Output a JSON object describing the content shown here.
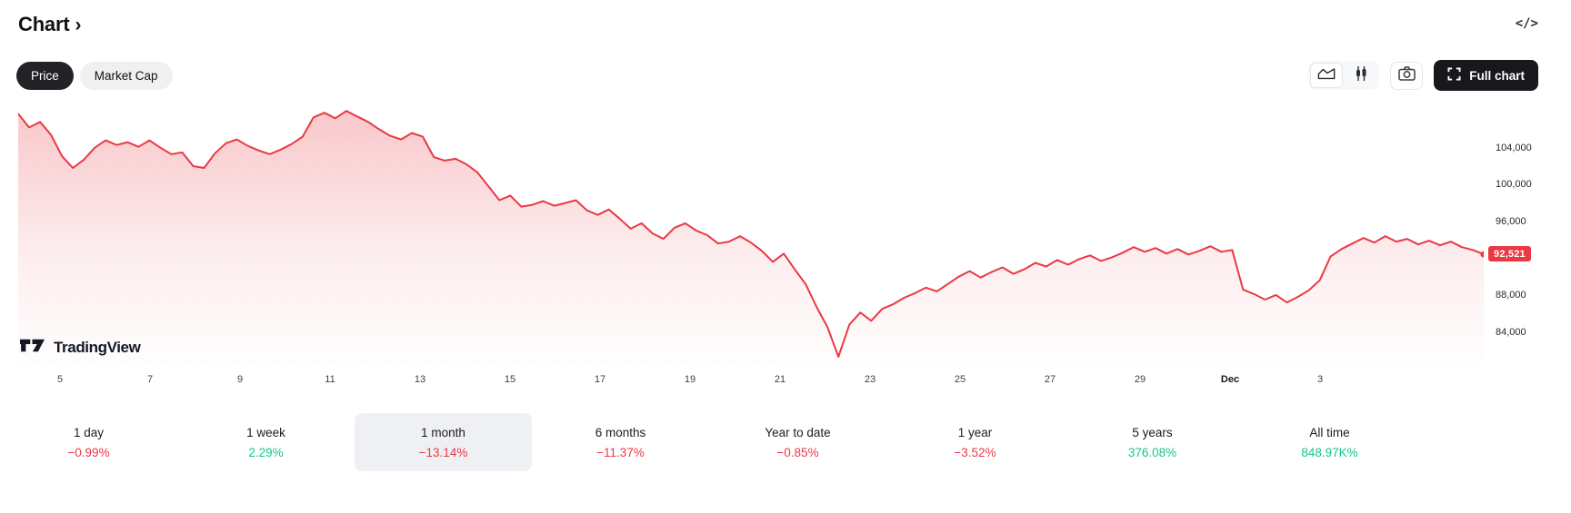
{
  "header": {
    "title": "Chart",
    "chevron": "›",
    "code_icon": "</>"
  },
  "toolbar": {
    "tabs": [
      {
        "label": "Price",
        "active": true
      },
      {
        "label": "Market Cap",
        "active": false
      }
    ],
    "chart_type_selected": "area",
    "full_chart_label": "Full chart"
  },
  "chart_data": {
    "type": "area",
    "title": "Price chart, 1 month",
    "x_labels": [
      "5",
      "7",
      "9",
      "11",
      "13",
      "15",
      "17",
      "19",
      "21",
      "23",
      "25",
      "27",
      "29",
      "Dec",
      "3"
    ],
    "y_ticks": [
      104000,
      100000,
      96000,
      88000,
      84000
    ],
    "y_tick_labels": [
      "104,000",
      "100,000",
      "96,000",
      "88,000",
      "84,000"
    ],
    "current_price": 92521,
    "current_price_label": "92,521",
    "y_range": [
      80500,
      109300
    ],
    "prices": [
      107800,
      106300,
      106900,
      105500,
      103200,
      101900,
      102800,
      104100,
      104900,
      104400,
      104700,
      104200,
      104900,
      104100,
      103400,
      103600,
      102100,
      101900,
      103500,
      104600,
      105000,
      104300,
      103800,
      103400,
      103900,
      104500,
      105300,
      107400,
      107900,
      107300,
      108100,
      107500,
      106900,
      106100,
      105400,
      105000,
      105700,
      105300,
      103100,
      102700,
      102900,
      102300,
      101400,
      99900,
      98400,
      98900,
      97700,
      97900,
      98300,
      97800,
      98100,
      98400,
      97300,
      96800,
      97400,
      96400,
      95300,
      95900,
      94800,
      94200,
      95400,
      95900,
      95100,
      94600,
      93700,
      93900,
      94500,
      93800,
      92900,
      91700,
      92600,
      90900,
      89300,
      86800,
      84600,
      81400,
      84900,
      86200,
      85300,
      86600,
      87100,
      87800,
      88300,
      88900,
      88500,
      89300,
      90100,
      90700,
      90000,
      90600,
      91100,
      90400,
      90900,
      91600,
      91200,
      91900,
      91400,
      92000,
      92400,
      91800,
      92200,
      92700,
      93300,
      92800,
      93200,
      92600,
      93100,
      92500,
      92900,
      93400,
      92800,
      93000,
      88700,
      88200,
      87600,
      88100,
      87300,
      87900,
      88600,
      89700,
      92300,
      93100,
      93700,
      94300,
      93800,
      94500,
      93900,
      94200,
      93600,
      94000,
      93500,
      93900,
      93300,
      93000,
      92521
    ]
  },
  "watermark": {
    "brand": "TradingView"
  },
  "stats": [
    {
      "label": "1 day",
      "value": "−0.99%",
      "direction": "down",
      "active": false
    },
    {
      "label": "1 week",
      "value": "2.29%",
      "direction": "up",
      "active": false
    },
    {
      "label": "1 month",
      "value": "−13.14%",
      "direction": "down",
      "active": true
    },
    {
      "label": "6 months",
      "value": "−11.37%",
      "direction": "down",
      "active": false
    },
    {
      "label": "Year to date",
      "value": "−0.85%",
      "direction": "down",
      "active": false
    },
    {
      "label": "1 year",
      "value": "−3.52%",
      "direction": "down",
      "active": false
    },
    {
      "label": "5 years",
      "value": "376.08%",
      "direction": "up",
      "active": false
    },
    {
      "label": "All time",
      "value": "848.97K%",
      "direction": "up",
      "active": false
    }
  ],
  "colors": {
    "accent": "#ea3943",
    "down": "#ea3943",
    "up": "#16c784"
  }
}
